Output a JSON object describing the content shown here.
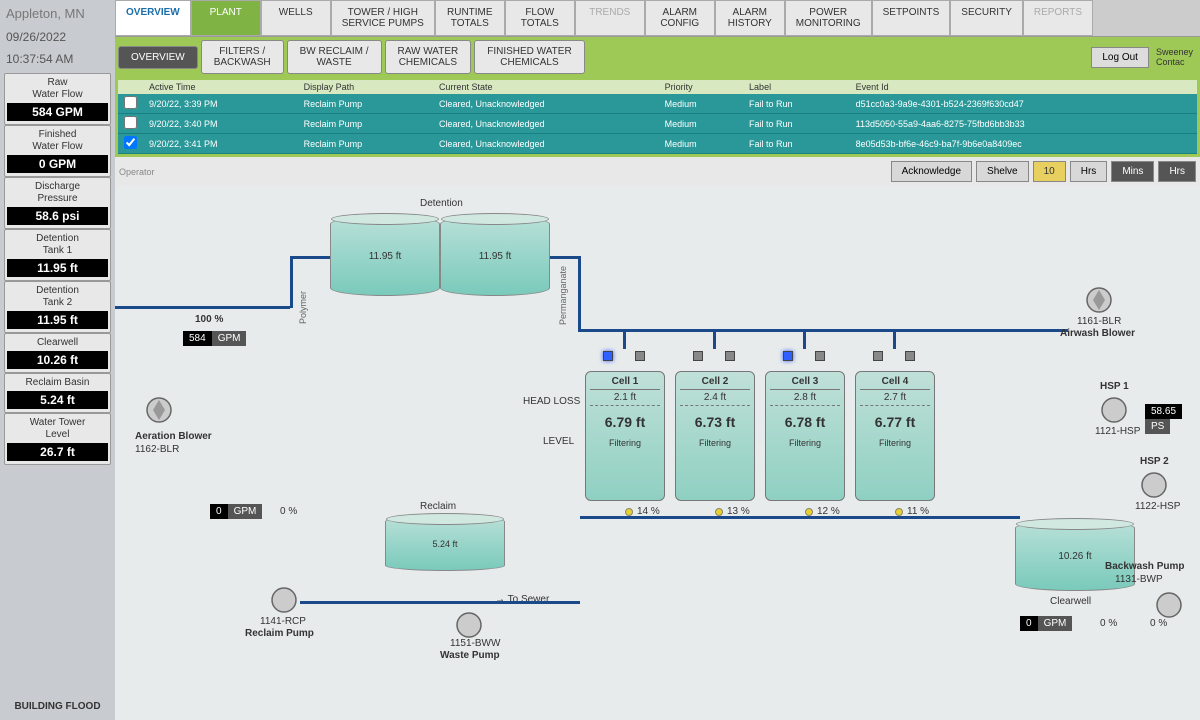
{
  "header": {
    "location": "Appleton, MN",
    "date": "09/26/2022",
    "time": "10:37:54 AM"
  },
  "metrics": [
    {
      "label": "Raw\nWater Flow",
      "value": "584 GPM"
    },
    {
      "label": "Finished\nWater Flow",
      "value": "0 GPM"
    },
    {
      "label": "Discharge\nPressure",
      "value": "58.6 psi"
    },
    {
      "label": "Detention\nTank 1",
      "value": "11.95 ft"
    },
    {
      "label": "Detention\nTank 2",
      "value": "11.95 ft"
    },
    {
      "label": "Clearwell",
      "value": "10.26 ft"
    },
    {
      "label": "Reclaim Basin",
      "value": "5.24 ft"
    },
    {
      "label": "Water Tower\nLevel",
      "value": "26.7 ft"
    }
  ],
  "building_flood": "BUILDING FLOOD",
  "tabs1": [
    "OVERVIEW",
    "PLANT",
    "WELLS",
    "TOWER / HIGH\nSERVICE PUMPS",
    "RUNTIME\nTOTALS",
    "FLOW\nTOTALS",
    "TRENDS",
    "ALARM\nCONFIG",
    "ALARM\nHISTORY",
    "POWER\nMONITORING",
    "SETPOINTS",
    "SECURITY",
    "REPORTS"
  ],
  "tabs2": [
    "OVERVIEW",
    "FILTERS /\nBACKWASH",
    "BW RECLAIM /\nWASTE",
    "RAW WATER\nCHEMICALS",
    "FINISHED WATER\nCHEMICALS"
  ],
  "logout": "Log Out",
  "contact": "Sweeney\nContac",
  "alarm_hdr": [
    "Active Time",
    "Display Path",
    "Current State",
    "Priority",
    "Label",
    "Event Id"
  ],
  "alarms": [
    {
      "t": "9/20/22, 3:39 PM",
      "p": "Reclaim Pump",
      "s": "Cleared, Unacknowledged",
      "pr": "Medium",
      "l": "Fail to Run",
      "id": "d51cc0a3-9a9e-4301-b524-2369f630cd47"
    },
    {
      "t": "9/20/22, 3:40 PM",
      "p": "Reclaim Pump",
      "s": "Cleared, Unacknowledged",
      "pr": "Medium",
      "l": "Fail to Run",
      "id": "113d5050-55a9-4aa6-8275-75fbd6bb3b33"
    },
    {
      "t": "9/20/22, 3:41 PM",
      "p": "Reclaim Pump",
      "s": "Cleared, Unacknowledged",
      "pr": "Medium",
      "l": "Fail to Run",
      "id": "8e05d53b-bf6e-46c9-ba7f-9b6e0a8409ec"
    }
  ],
  "ack": "Acknowledge",
  "shelve": "Shelve",
  "dur": "10",
  "hrs": "Hrs",
  "mins": "Mins",
  "operator": "Operator",
  "diagram": {
    "detention_lbl": "Detention",
    "det1": "11.95 ft",
    "det2": "11.95 ft",
    "aeration_pct": "100 %",
    "aeration_gpm": "584",
    "gpm_u": "GPM",
    "aeration_name": "Aeration Blower",
    "aeration_id": "1162-BLR",
    "polymer": "Polymer",
    "permanganate": "Permanganate",
    "headloss": "HEAD LOSS",
    "level": "LEVEL",
    "cells": [
      {
        "n": "Cell 1",
        "hl": "2.1 ft",
        "lv": "6.79 ft",
        "st": "Filtering",
        "pct": "14 %"
      },
      {
        "n": "Cell 2",
        "hl": "2.4 ft",
        "lv": "6.73 ft",
        "st": "Filtering",
        "pct": "13 %"
      },
      {
        "n": "Cell 3",
        "hl": "2.8 ft",
        "lv": "6.78 ft",
        "st": "Filtering",
        "pct": "12 %"
      },
      {
        "n": "Cell 4",
        "hl": "2.7 ft",
        "lv": "6.77 ft",
        "st": "Filtering",
        "pct": "11 %"
      }
    ],
    "airwash_id": "1161-BLR",
    "airwash": "Airwash Blower",
    "hsp1": "HSP 1",
    "hsp1_id": "1121-HSP",
    "hsp1_val": "58.65",
    "hsp1_u": "PS",
    "hsp2": "HSP 2",
    "hsp2_id": "1122-HSP",
    "clearwell_lbl": "Clearwell",
    "clearwell": "10.26 ft",
    "backwash": "Backwash Pump",
    "backwash_id": "1131-BWP",
    "reclaim_lbl": "Reclaim",
    "reclaim_lv": "5.24 ft",
    "reclaim_gpm": "0",
    "reclaim_gpm_u": "GPM",
    "reclaim_pct": "0 %",
    "reclaim_pump": "Reclaim Pump",
    "reclaim_id": "1141-RCP",
    "waste_pump": "Waste Pump",
    "waste_id": "1151-BWW",
    "to_sewer": "To Sewer",
    "bw_gpm": "0",
    "bw_gpm_u": "GPM",
    "bw_pct1": "0 %",
    "bw_pct2": "0 %"
  },
  "colors": {
    "accent": "#7fb445",
    "teal": "#2a9898",
    "pipe": "#1a4a8a",
    "tank": "#8fd0c2"
  }
}
